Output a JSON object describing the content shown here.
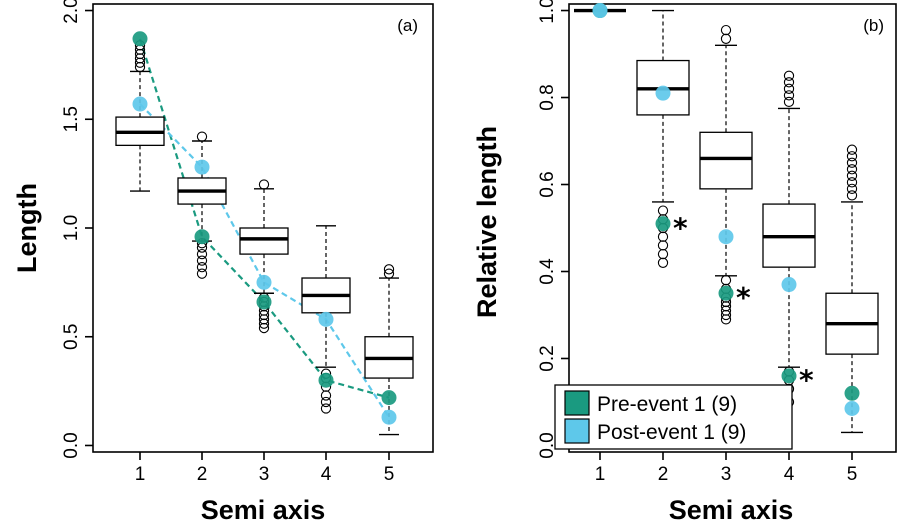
{
  "colors": {
    "pre": "#1a9a80",
    "post": "#5ec8ea",
    "box": "#ffffff",
    "line": "#000000"
  },
  "chart_data": [
    {
      "type": "box",
      "panel_label": "(a)",
      "xlabel": "Semi axis",
      "ylabel": "Length",
      "categories": [
        "1",
        "2",
        "3",
        "4",
        "5"
      ],
      "ylim": [
        -0.03,
        2.03
      ],
      "yticks": [
        "0.0",
        "0.5",
        "1.0",
        "1.5",
        "2.0"
      ],
      "boxes": [
        {
          "q1": 1.38,
          "median": 1.44,
          "q3": 1.51,
          "lower": 1.17,
          "upper": 1.72,
          "outliers": [
            1.74,
            1.76,
            1.78,
            1.8,
            1.82,
            1.84
          ]
        },
        {
          "q1": 1.11,
          "median": 1.17,
          "q3": 1.23,
          "lower": 0.94,
          "upper": 1.4,
          "outliers": [
            0.79,
            0.82,
            0.85,
            0.88,
            0.91,
            0.93,
            1.42
          ]
        },
        {
          "q1": 0.88,
          "median": 0.95,
          "q3": 1.0,
          "lower": 0.7,
          "upper": 1.18,
          "outliers": [
            0.54,
            0.56,
            0.58,
            0.6,
            0.62,
            0.64,
            0.66,
            0.68,
            1.2
          ]
        },
        {
          "q1": 0.61,
          "median": 0.69,
          "q3": 0.77,
          "lower": 0.36,
          "upper": 1.01,
          "outliers": [
            0.17,
            0.2,
            0.23,
            0.27,
            0.31,
            0.33
          ]
        },
        {
          "q1": 0.31,
          "median": 0.4,
          "q3": 0.5,
          "lower": 0.05,
          "upper": 0.77,
          "outliers": [
            0.79,
            0.81
          ]
        }
      ],
      "series": [
        {
          "name": "Pre-event 1 (9)",
          "color_key": "pre",
          "values": [
            1.87,
            0.96,
            0.66,
            0.3,
            0.22
          ]
        },
        {
          "name": "Post-event 1 (9)",
          "color_key": "post",
          "values": [
            1.57,
            1.28,
            0.75,
            0.58,
            0.13
          ]
        }
      ]
    },
    {
      "type": "box",
      "panel_label": "(b)",
      "xlabel": "Semi axis",
      "ylabel": "Relative length",
      "categories": [
        "1",
        "2",
        "3",
        "4",
        "5"
      ],
      "ylim": [
        -0.015,
        1.015
      ],
      "yticks": [
        "0.0",
        "0.2",
        "0.4",
        "0.6",
        "0.8",
        "1.0"
      ],
      "boxes": [
        {
          "q1": 1.0,
          "median": 1.0,
          "q3": 1.0,
          "lower": 1.0,
          "upper": 1.0,
          "outliers": []
        },
        {
          "q1": 0.76,
          "median": 0.82,
          "q3": 0.885,
          "lower": 0.56,
          "upper": 1.0,
          "outliers": [
            0.42,
            0.44,
            0.46,
            0.48,
            0.5,
            0.52,
            0.54
          ]
        },
        {
          "q1": 0.59,
          "median": 0.66,
          "q3": 0.72,
          "lower": 0.39,
          "upper": 0.92,
          "outliers": [
            0.29,
            0.3,
            0.31,
            0.32,
            0.33,
            0.34,
            0.36,
            0.38,
            0.935,
            0.955
          ]
        },
        {
          "q1": 0.41,
          "median": 0.48,
          "q3": 0.555,
          "lower": 0.18,
          "upper": 0.775,
          "outliers": [
            0.1,
            0.13,
            0.15,
            0.17,
            0.79,
            0.805,
            0.82,
            0.835,
            0.85
          ]
        },
        {
          "q1": 0.21,
          "median": 0.28,
          "q3": 0.35,
          "lower": 0.03,
          "upper": 0.56,
          "outliers": [
            0.575,
            0.59,
            0.605,
            0.62,
            0.635,
            0.65,
            0.665,
            0.68
          ]
        }
      ],
      "series": [
        {
          "name": "Pre-event 1 (9)",
          "color_key": "pre",
          "values": [
            1.0,
            0.51,
            0.35,
            0.16,
            0.12
          ]
        },
        {
          "name": "Post-event 1 (9)",
          "color_key": "post",
          "values": [
            1.0,
            0.81,
            0.48,
            0.37,
            0.085
          ]
        }
      ],
      "annotations": [
        {
          "text": "*",
          "category": "2",
          "y": 0.52
        },
        {
          "text": "*",
          "category": "3",
          "y": 0.36
        },
        {
          "text": "*",
          "category": "4",
          "y": 0.17
        }
      ],
      "legend": {
        "position": "bottom-left",
        "entries": [
          {
            "label": "Pre-event 1 (9)",
            "color_key": "pre"
          },
          {
            "label": "Post-event 1 (9)",
            "color_key": "post"
          }
        ]
      }
    }
  ]
}
